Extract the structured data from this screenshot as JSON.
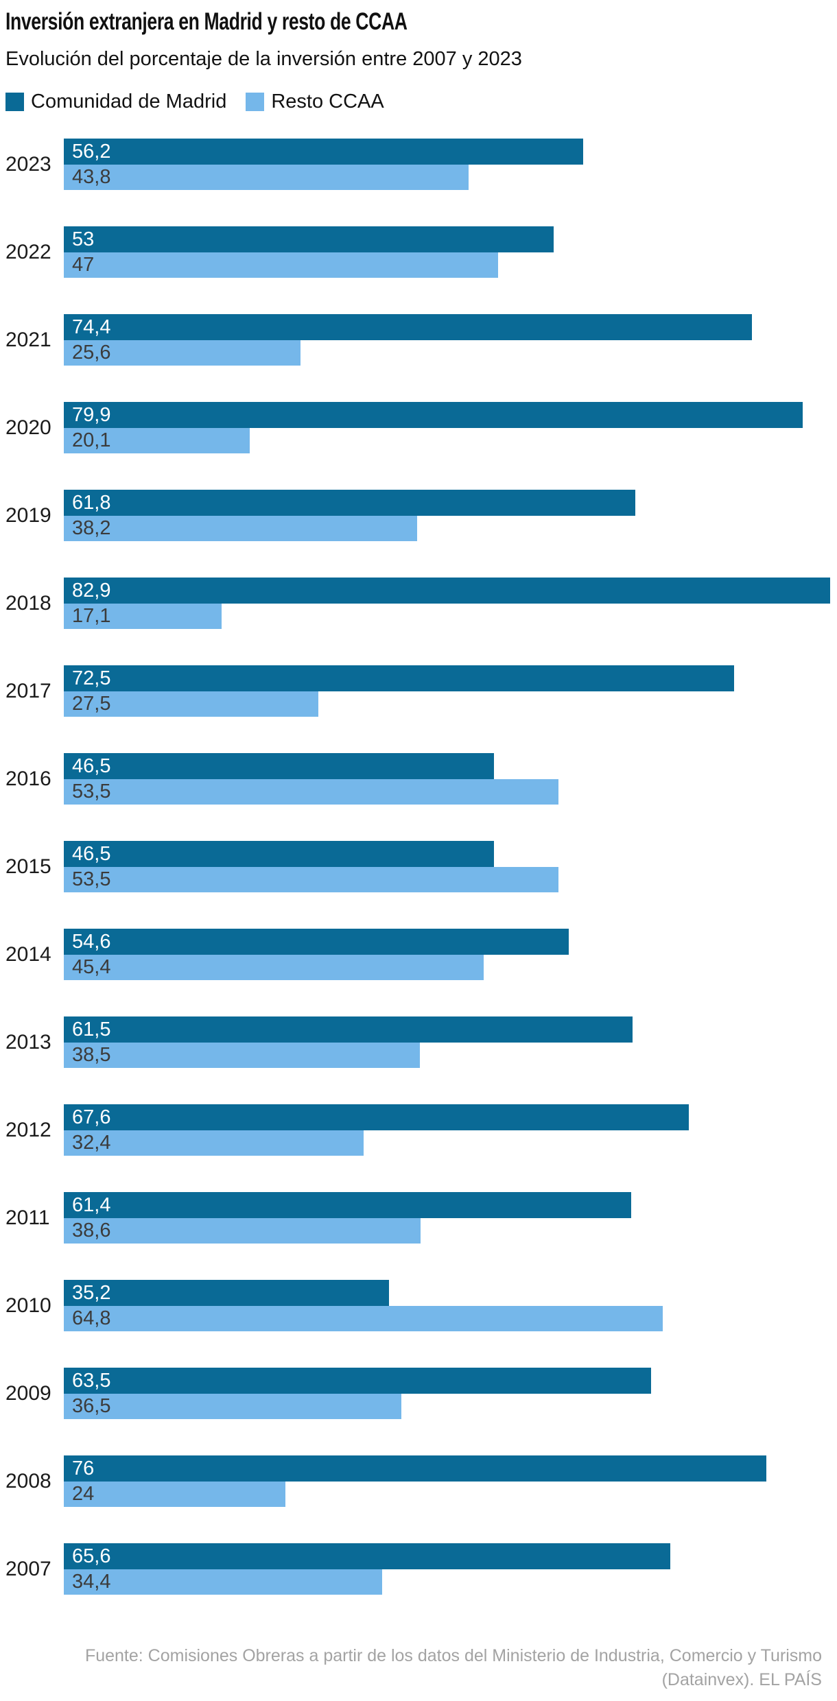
{
  "header": {
    "title": "Inversión extranjera en Madrid y resto de CCAA",
    "subtitle": "Evolución del porcentaje de la inversión entre 2007 y 2023"
  },
  "legend": [
    {
      "label": "Comunidad de Madrid",
      "color": "#0a6a96"
    },
    {
      "label": "Resto CCAA",
      "color": "#75b7ea"
    }
  ],
  "colors": {
    "madrid_bar": "#0a6a96",
    "resto_bar": "#75b7ea",
    "label_on_dark": "#ffffff",
    "label_on_light": "#3b3b3b",
    "text": "#111111",
    "footer_text": "#a3a3a3"
  },
  "chart_data": {
    "type": "bar",
    "orientation": "horizontal",
    "unit": "%",
    "axis_max": 82.9,
    "grid": false,
    "legend_position": "top",
    "decimal_separator": ",",
    "categories": [
      "2023",
      "2022",
      "2021",
      "2020",
      "2019",
      "2018",
      "2017",
      "2016",
      "2015",
      "2014",
      "2013",
      "2012",
      "2011",
      "2010",
      "2009",
      "2008",
      "2007"
    ],
    "series": [
      {
        "name": "Comunidad de Madrid",
        "values": [
          56.2,
          53,
          74.4,
          79.9,
          61.8,
          82.9,
          72.5,
          46.5,
          46.5,
          54.6,
          61.5,
          67.6,
          61.4,
          35.2,
          63.5,
          76,
          65.6
        ]
      },
      {
        "name": "Resto CCAA",
        "values": [
          43.8,
          47,
          25.6,
          20.1,
          38.2,
          17.1,
          27.5,
          53.5,
          53.5,
          45.4,
          38.5,
          32.4,
          38.6,
          64.8,
          36.5,
          24,
          34.4
        ]
      }
    ]
  },
  "footer": {
    "line1": "Fuente: Comisiones Obreras a partir de los datos del Ministerio de Industria, Comercio y Turismo",
    "line2": "(Datainvex). EL PAÍS"
  }
}
